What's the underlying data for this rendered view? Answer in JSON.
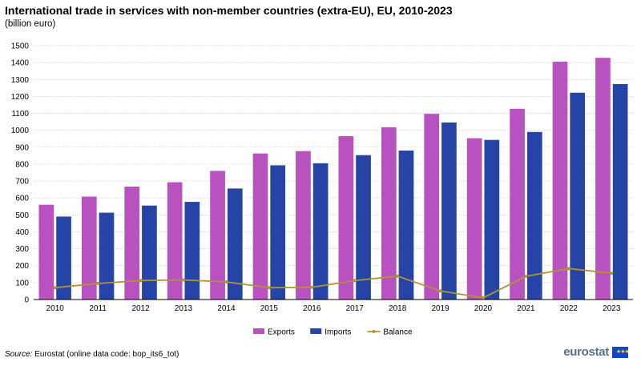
{
  "title": "International trade in services with non-member countries (extra-EU), EU, 2010-2023",
  "subtitle": "(billion euro)",
  "source_label": "Source:",
  "source_text": " Eurostat (online data code: bop_its6_tot)",
  "logo_text": "eurostat",
  "colors": {
    "exports": "#b752bf",
    "imports": "#2644a6",
    "balance": "#b09535",
    "grid": "#c8c8c8",
    "axis": "#000000"
  },
  "chart_data": {
    "type": "bar",
    "title": "International trade in services with non-member countries (extra-EU), EU, 2010-2023",
    "ylabel": "billion euro",
    "ylim": [
      0,
      1500
    ],
    "yticks": [
      0,
      100,
      200,
      300,
      400,
      500,
      600,
      700,
      800,
      900,
      1000,
      1100,
      1200,
      1300,
      1400,
      1500
    ],
    "categories": [
      "2010",
      "2011",
      "2012",
      "2013",
      "2014",
      "2015",
      "2016",
      "2017",
      "2018",
      "2019",
      "2020",
      "2021",
      "2022",
      "2023"
    ],
    "series": [
      {
        "name": "Exports",
        "type": "bar",
        "values": [
          560,
          608,
          667,
          693,
          760,
          863,
          877,
          965,
          1018,
          1097,
          953,
          1127,
          1405,
          1428
        ]
      },
      {
        "name": "Imports",
        "type": "bar",
        "values": [
          490,
          513,
          555,
          577,
          656,
          793,
          805,
          853,
          880,
          1046,
          943,
          990,
          1222,
          1273
        ]
      },
      {
        "name": "Balance",
        "type": "line",
        "values": [
          70,
          95,
          112,
          116,
          104,
          70,
          72,
          112,
          138,
          51,
          10,
          137,
          183,
          155
        ]
      }
    ],
    "legend": [
      "Exports",
      "Imports",
      "Balance"
    ],
    "legend_position": "bottom-center",
    "grid": true
  }
}
